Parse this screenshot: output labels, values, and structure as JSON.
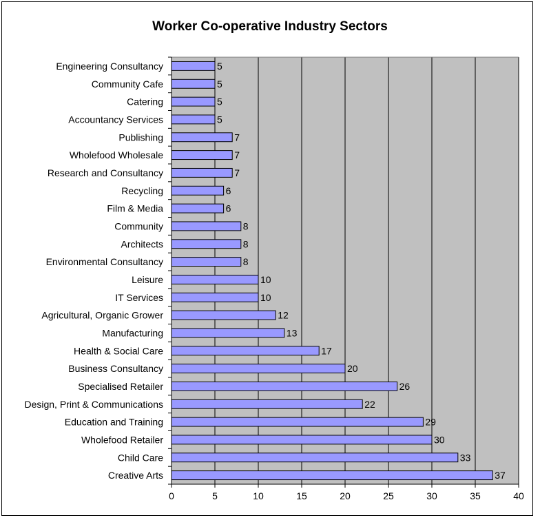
{
  "chart_data": {
    "type": "bar",
    "orientation": "horizontal",
    "title": "Worker Co-operative Industry Sectors",
    "xlabel": "",
    "ylabel": "",
    "xlim": [
      0,
      40
    ],
    "xticks": [
      0,
      5,
      10,
      15,
      20,
      25,
      30,
      35,
      40
    ],
    "grid": "vertical major gridlines",
    "legend": "none",
    "colors": {
      "bar_fill": "#9999ff",
      "bar_stroke": "#000000",
      "plot_background": "#c0c0c0",
      "gridline": "#000000"
    },
    "categories": [
      "Engineering Consultancy",
      "Community Cafe",
      "Catering",
      "Accountancy Services",
      "Publishing",
      "Wholefood Wholesale",
      "Research and Consultancy",
      "Recycling",
      "Film & Media",
      "Community",
      "Architects",
      "Environmental Consultancy",
      "Leisure",
      "IT Services",
      "Agricultural, Organic Grower",
      "Manufacturing",
      "Health & Social Care",
      "Business Consultancy",
      "Specialised Retailer",
      "Design, Print & Communications",
      "Education and Training",
      "Wholefood Retailer",
      "Child Care",
      "Creative Arts"
    ],
    "values": [
      5,
      5,
      5,
      5,
      7,
      7,
      7,
      6,
      6,
      8,
      8,
      8,
      10,
      10,
      12,
      13,
      17,
      20,
      26,
      22,
      29,
      30,
      33,
      37
    ]
  }
}
